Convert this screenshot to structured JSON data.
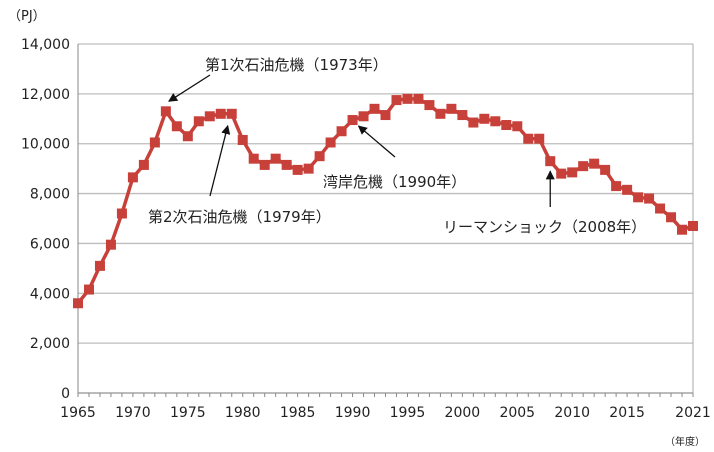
{
  "chart_data": {
    "type": "line",
    "title": "",
    "unit_label": "（PJ）",
    "xlabel": "（年度）",
    "ylabel": "",
    "ylim": [
      0,
      14000
    ],
    "xlim": [
      1965,
      2021
    ],
    "grid": true,
    "legend": "none",
    "y_ticks": [
      "0",
      "2,000",
      "4,000",
      "6,000",
      "8,000",
      "10,000",
      "12,000",
      "14,000"
    ],
    "x_ticks": [
      "1965",
      "1970",
      "1975",
      "1980",
      "1985",
      "1990",
      "1995",
      "2000",
      "2005",
      "2010",
      "2015",
      "2021"
    ],
    "color": "#c8403a",
    "x": [
      1965,
      1966,
      1967,
      1968,
      1969,
      1970,
      1971,
      1972,
      1973,
      1974,
      1975,
      1976,
      1977,
      1978,
      1979,
      1980,
      1981,
      1982,
      1983,
      1984,
      1985,
      1986,
      1987,
      1988,
      1989,
      1990,
      1991,
      1992,
      1993,
      1994,
      1995,
      1996,
      1997,
      1998,
      1999,
      2000,
      2001,
      2002,
      2003,
      2004,
      2005,
      2006,
      2007,
      2008,
      2009,
      2010,
      2011,
      2012,
      2013,
      2014,
      2015,
      2016,
      2017,
      2018,
      2019,
      2020,
      2021
    ],
    "values": [
      3600,
      4150,
      5100,
      5950,
      7200,
      8650,
      9150,
      10050,
      11300,
      10700,
      10300,
      10900,
      11100,
      11200,
      11200,
      10150,
      9400,
      9150,
      9400,
      9150,
      8950,
      9000,
      9500,
      10050,
      10500,
      10950,
      11100,
      11400,
      11150,
      11750,
      11800,
      11800,
      11550,
      11200,
      11400,
      11150,
      10850,
      11000,
      10900,
      10750,
      10700,
      10200,
      10200,
      9300,
      8800,
      8850,
      9100,
      9200,
      8950,
      8300,
      8150,
      7850,
      7800,
      7400,
      7050,
      6550,
      6700
    ],
    "annotations": [
      {
        "text": "第1次石油危機（1973年）",
        "year": 1973
      },
      {
        "text": "第2次石油危機（1979年）",
        "year": 1979
      },
      {
        "text": "湾岸危機（1990年）",
        "year": 1990
      },
      {
        "text": "リーマンショック（2008年）",
        "year": 2008
      }
    ]
  }
}
